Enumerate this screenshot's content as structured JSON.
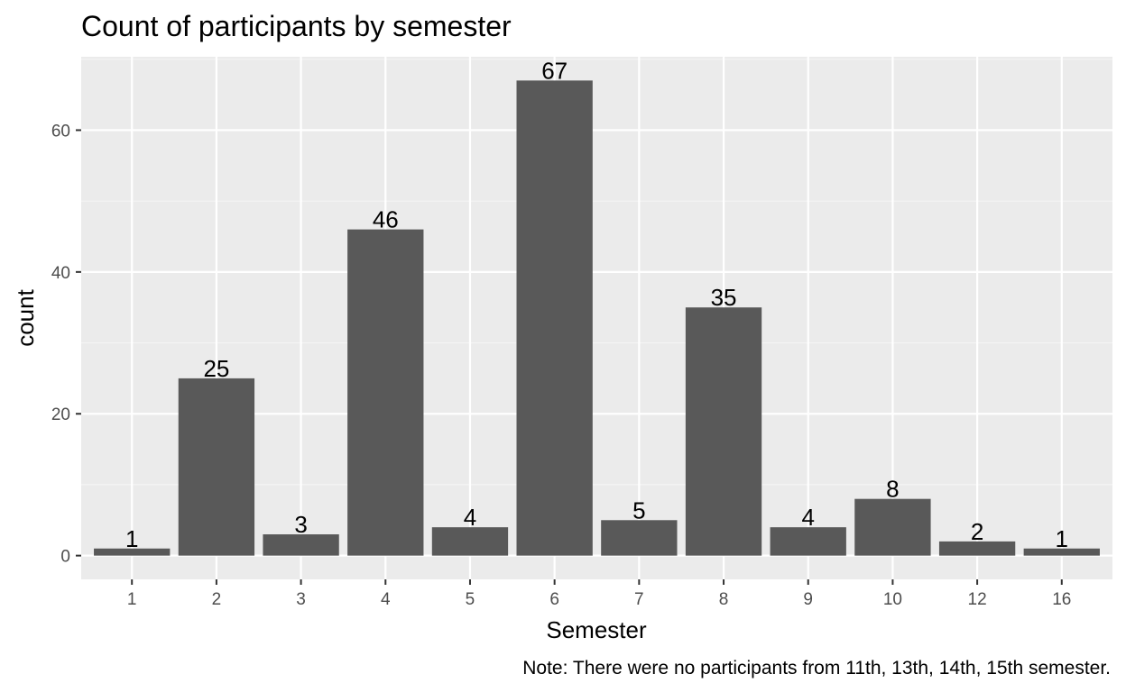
{
  "chart_data": {
    "type": "bar",
    "title": "Count of participants by semester",
    "xlabel": "Semester",
    "ylabel": "count",
    "caption": "Note: There were no participants from 11th, 13th, 14th, 15th semester.",
    "categories": [
      "1",
      "2",
      "3",
      "4",
      "5",
      "6",
      "7",
      "8",
      "9",
      "10",
      "12",
      "16"
    ],
    "values": [
      1,
      25,
      3,
      46,
      4,
      67,
      5,
      35,
      4,
      8,
      2,
      1
    ],
    "data_labels": [
      "1",
      "25",
      "3",
      "46",
      "4",
      "67",
      "5",
      "35",
      "4",
      "8",
      "2",
      "1"
    ],
    "ylim": [
      -3.35,
      70.35
    ],
    "y_ticks": [
      0,
      20,
      40,
      60
    ],
    "y_tick_labels": [
      "0",
      "20",
      "40",
      "60"
    ],
    "grid": true,
    "colors": {
      "panel_background": "#ebebeb",
      "grid_major": "#ffffff",
      "grid_minor": "#f5f5f5",
      "bar_fill": "#595959",
      "tick_mark": "#333333"
    }
  }
}
